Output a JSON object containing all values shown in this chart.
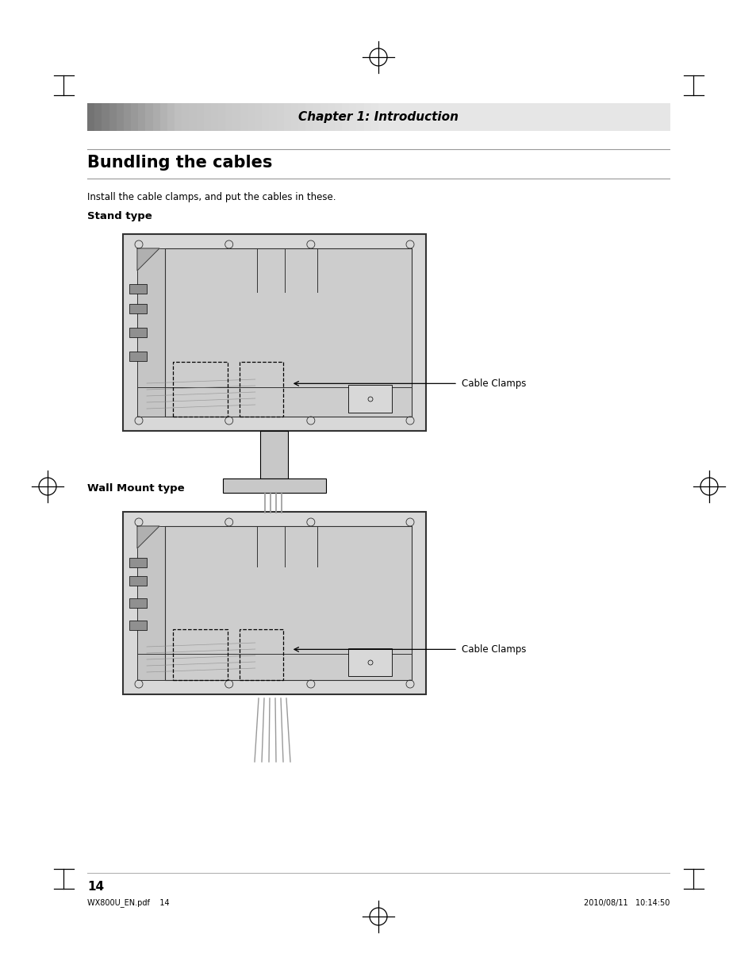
{
  "page_bg": "#ffffff",
  "chapter_bar_left_color": "#aaaaaa",
  "chapter_bar_right_color": "#e8e8e8",
  "chapter_text": "Chapter 1: Introduction",
  "title": "Bundling the cables",
  "subtitle_text": "Install the cable clamps, and put the cables in these.",
  "stand_type_label": "Stand type",
  "wall_mount_label": "Wall Mount type",
  "cable_clamps_label": "Cable Clamps",
  "page_number": "14",
  "footer_file": "WX800U_EN.pdf    14",
  "footer_date": "2010/08/11   10:14:50",
  "tv_body_color": "#d8d8d8",
  "tv_inner_color": "#cccccc",
  "tv_border_color": "#333333",
  "tv_dark_panel": "#b8b8b8"
}
